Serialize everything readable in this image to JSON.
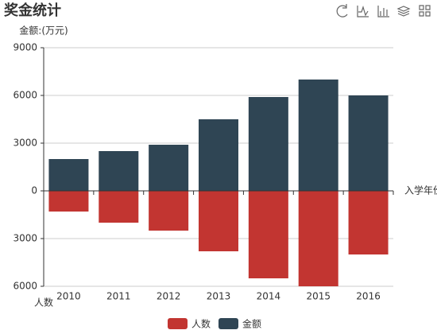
{
  "chart_data": {
    "type": "bar",
    "title": "奖金统计",
    "categories": [
      "2010",
      "2011",
      "2012",
      "2013",
      "2014",
      "2015",
      "2016"
    ],
    "series": [
      {
        "name": "人数",
        "color": "#c23531",
        "axis": "y2",
        "values": [
          1300,
          2000,
          2500,
          3800,
          5500,
          6000,
          4000
        ]
      },
      {
        "name": "金额",
        "color": "#2f4554",
        "values": [
          2000,
          2500,
          2900,
          4500,
          5900,
          7000,
          6000
        ]
      }
    ],
    "y_axis_label": "金额:(万元)",
    "y2_axis_label": "人数",
    "x_axis_label": "入学年份",
    "ylim": [
      0,
      9000
    ],
    "yticks": [
      0,
      3000,
      6000,
      9000
    ],
    "y2lim": [
      0,
      6000
    ],
    "y2ticks": [
      3000,
      6000
    ],
    "y2_inverse": true,
    "grid": true,
    "legend": "bottom"
  }
}
